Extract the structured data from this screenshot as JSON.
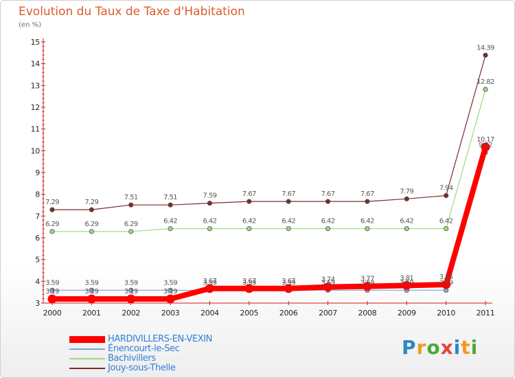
{
  "title": "Evolution du Taux de Taxe d'Habitation",
  "subtitle": "(en %)",
  "logo": {
    "letters": [
      "P",
      "r",
      "o",
      "x",
      "i",
      "t",
      "i"
    ],
    "colors": [
      "#2f86c8",
      "#f39a1e",
      "#4caa3a",
      "#e2453c",
      "#2f86c8",
      "#f39a1e",
      "#4caa3a"
    ]
  },
  "chart_data": {
    "type": "line",
    "x": [
      "2000",
      "2001",
      "2002",
      "2003",
      "2004",
      "2005",
      "2006",
      "2007",
      "2008",
      "2009",
      "2010",
      "2011"
    ],
    "ylim": [
      3,
      15
    ],
    "yticks": [
      "3",
      "4",
      "5",
      "6",
      "7",
      "8",
      "9",
      "10",
      "11",
      "12",
      "13",
      "14",
      "15"
    ],
    "grid": false,
    "legend": "bottom-left",
    "series": [
      {
        "name": "Jouy-sous-Thelle",
        "color": "#7a2b2b",
        "values": [
          7.29,
          7.29,
          7.51,
          7.51,
          7.59,
          7.67,
          7.67,
          7.67,
          7.67,
          7.79,
          7.94,
          14.39
        ],
        "labels": [
          "7.29",
          "7.29",
          "7.51",
          "7.51",
          "7.59",
          "7.67",
          "7.67",
          "7.67",
          "7.67",
          "7.79",
          "7.94",
          "14.39"
        ]
      },
      {
        "name": "Bachivillers",
        "color": "#9fd77e",
        "values": [
          6.29,
          6.29,
          6.29,
          6.42,
          6.42,
          6.42,
          6.42,
          6.42,
          6.42,
          6.42,
          6.42,
          12.82
        ],
        "labels": [
          "6.29",
          "6.29",
          "6.29",
          "6.42",
          "6.42",
          "6.42",
          "6.42",
          "6.42",
          "6.42",
          "6.42",
          "6.42",
          "12.82"
        ]
      },
      {
        "name": "Énencourt-le-Sec",
        "color": "#7fa6cf",
        "values": [
          3.59,
          3.59,
          3.59,
          3.59,
          3.59,
          3.59,
          3.59,
          3.59,
          3.59,
          3.59,
          3.59,
          9.92
        ],
        "labels": [
          "3.59",
          "3.59",
          "3.59",
          "3.59",
          "3.59",
          "3.59",
          "3.59",
          "3.59",
          "3.59",
          "3.59",
          "3.59",
          "9.92"
        ]
      },
      {
        "name": "HARDIVILLERS-EN-VEXIN",
        "color": "#ff0000",
        "values": [
          3.19,
          3.19,
          3.19,
          3.19,
          3.67,
          3.67,
          3.67,
          3.74,
          3.77,
          3.81,
          3.85,
          10.17
        ],
        "labels": [
          "3.19",
          "3.19",
          "3.19",
          "3.19",
          "3.67",
          "3.67",
          "3.67",
          "3.74",
          "3.77",
          "3.81",
          "3.85",
          "10.17"
        ]
      }
    ]
  }
}
